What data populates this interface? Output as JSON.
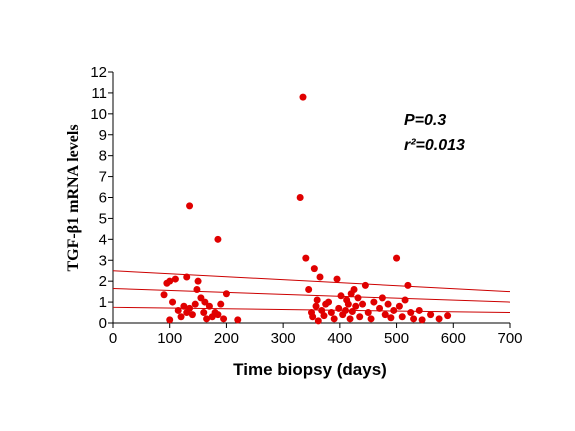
{
  "chart_data": {
    "type": "scatter",
    "xlabel": "Time biopsy (days)",
    "ylabel": "TGF-β1 mRNA levels",
    "xlim": [
      0,
      700
    ],
    "ylim": [
      0,
      12
    ],
    "xticks": [
      "0",
      "100",
      "200",
      "300",
      "400",
      "500",
      "600",
      "700"
    ],
    "yticks": [
      "0",
      "1",
      "2",
      "3",
      "4",
      "5",
      "6",
      "7",
      "8",
      "9",
      "10",
      "11",
      "12"
    ],
    "annotations": {
      "p": "P=0.3",
      "r2": "r²=0.013"
    },
    "point_color": "#e00000",
    "line_color": "#cc0000",
    "points": [
      [
        90,
        1.35
      ],
      [
        95,
        1.9
      ],
      [
        100,
        0.15
      ],
      [
        105,
        1.0
      ],
      [
        100,
        2.0
      ],
      [
        110,
        2.1
      ],
      [
        115,
        0.6
      ],
      [
        120,
        0.3
      ],
      [
        125,
        0.8
      ],
      [
        130,
        0.5
      ],
      [
        130,
        2.2
      ],
      [
        135,
        0.7
      ],
      [
        140,
        0.4
      ],
      [
        145,
        0.9
      ],
      [
        148,
        1.6
      ],
      [
        150,
        2.0
      ],
      [
        155,
        1.2
      ],
      [
        160,
        0.5
      ],
      [
        162,
        1.0
      ],
      [
        165,
        0.2
      ],
      [
        170,
        0.8
      ],
      [
        175,
        0.3
      ],
      [
        180,
        0.5
      ],
      [
        185,
        0.4
      ],
      [
        190,
        0.9
      ],
      [
        195,
        0.2
      ],
      [
        200,
        1.4
      ],
      [
        220,
        0.15
      ],
      [
        135,
        5.6
      ],
      [
        185,
        4.0
      ],
      [
        335,
        10.8
      ],
      [
        330,
        6.0
      ],
      [
        340,
        3.1
      ],
      [
        345,
        1.6
      ],
      [
        350,
        0.5
      ],
      [
        352,
        0.3
      ],
      [
        355,
        2.6
      ],
      [
        358,
        0.8
      ],
      [
        360,
        1.1
      ],
      [
        362,
        0.1
      ],
      [
        365,
        2.2
      ],
      [
        368,
        0.6
      ],
      [
        372,
        0.35
      ],
      [
        375,
        0.9
      ],
      [
        380,
        1.0
      ],
      [
        385,
        0.5
      ],
      [
        390,
        0.2
      ],
      [
        395,
        2.1
      ],
      [
        398,
        0.7
      ],
      [
        402,
        1.3
      ],
      [
        405,
        0.4
      ],
      [
        410,
        0.6
      ],
      [
        412,
        1.1
      ],
      [
        415,
        0.9
      ],
      [
        418,
        0.2
      ],
      [
        420,
        1.4
      ],
      [
        422,
        0.55
      ],
      [
        425,
        1.6
      ],
      [
        428,
        0.8
      ],
      [
        432,
        1.2
      ],
      [
        435,
        0.3
      ],
      [
        440,
        0.9
      ],
      [
        445,
        1.8
      ],
      [
        450,
        0.5
      ],
      [
        455,
        0.2
      ],
      [
        460,
        1.0
      ],
      [
        470,
        0.7
      ],
      [
        475,
        1.2
      ],
      [
        480,
        0.4
      ],
      [
        485,
        0.9
      ],
      [
        490,
        0.25
      ],
      [
        495,
        0.6
      ],
      [
        500,
        3.1
      ],
      [
        505,
        0.8
      ],
      [
        510,
        0.3
      ],
      [
        515,
        1.1
      ],
      [
        520,
        1.8
      ],
      [
        525,
        0.5
      ],
      [
        530,
        0.2
      ],
      [
        540,
        0.6
      ],
      [
        545,
        0.15
      ],
      [
        560,
        0.4
      ],
      [
        575,
        0.2
      ],
      [
        590,
        0.35
      ]
    ],
    "fit_lines": [
      {
        "name": "upper",
        "x": [
          0,
          700
        ],
        "y": [
          2.5,
          1.5
        ]
      },
      {
        "name": "fit",
        "x": [
          0,
          700
        ],
        "y": [
          1.65,
          1.0
        ]
      },
      {
        "name": "lower",
        "x": [
          0,
          700
        ],
        "y": [
          0.75,
          0.5
        ]
      }
    ]
  }
}
